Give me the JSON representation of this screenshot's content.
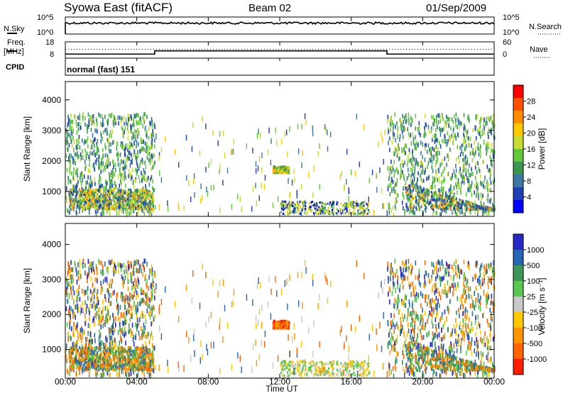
{
  "header": {
    "title": "Syowa East (fitACF)",
    "beam": "Beam 02",
    "date": "01/Sep/2009"
  },
  "chart_data": [
    {
      "type": "line",
      "panel": "noise",
      "left_label": "N.Sky",
      "right_label": "N.Search",
      "left_ticks": [
        "10^5",
        "10^0"
      ],
      "right_ticks": [
        "10^5",
        "10^0"
      ],
      "description_level_log10": 4.5
    },
    {
      "type": "line",
      "panel": "frequency",
      "left_label_line1": "Freq.",
      "left_label_line2": "[MHz]",
      "right_label": "Nave",
      "left_ticks": [
        18,
        8
      ],
      "right_ticks": [
        60,
        0
      ],
      "freq_ylim": [
        8,
        18
      ],
      "nave_ylim": [
        0,
        60
      ],
      "freq_series": [
        {
          "t_start": 0,
          "t_end": 5,
          "value_mhz": 10.5
        },
        {
          "t_start": 5,
          "t_end": 18,
          "value_mhz": 12.5
        },
        {
          "t_start": 18,
          "t_end": 24,
          "value_mhz": 10.5
        }
      ],
      "nave_level": 33
    },
    {
      "type": "text",
      "panel": "cpid",
      "label": "CPID",
      "value": "normal (fast) 151"
    },
    {
      "type": "heatmap",
      "panel": "power",
      "ylabel": "Slant Range [km]",
      "yticks": [
        1000,
        2000,
        3000,
        4000
      ],
      "ylim": [
        180,
        4600
      ],
      "colorbar": {
        "label": "Power [dB]",
        "ticks": [
          "4",
          "8",
          "12",
          "16",
          "20",
          "24",
          "28"
        ],
        "colors": [
          "#0000ff",
          "#1f3fb4",
          "#3c78a0",
          "#3c9650",
          "#64c83c",
          "#c8dc32",
          "#ffc800",
          "#ff8c00",
          "#ff5000",
          "#ff0000"
        ]
      },
      "echo_regions": [
        {
          "t": [
            0,
            5
          ],
          "r": [
            250,
            3600
          ],
          "note": "scatter"
        },
        {
          "t": [
            0.3,
            4.8
          ],
          "r": [
            500,
            1100
          ],
          "note": "dense"
        },
        {
          "t": [
            11.5,
            12.5
          ],
          "r": [
            1650,
            1850
          ]
        },
        {
          "t": [
            12,
            17
          ],
          "r": [
            250,
            700
          ]
        },
        {
          "t": [
            18,
            24
          ],
          "r": [
            250,
            3600
          ],
          "note": "scatter"
        }
      ]
    },
    {
      "type": "heatmap",
      "panel": "velocity",
      "ylabel": "Slant Range [km]",
      "yticks": [
        1000,
        2000,
        3000,
        4000
      ],
      "ylim": [
        180,
        4600
      ],
      "colorbar": {
        "label": "Velocity [m s⁻¹]",
        "ticks": [
          "1000",
          "500",
          "100",
          "25",
          "-25",
          "-100",
          "-500",
          "-1000"
        ],
        "colors": [
          "#2828c8",
          "#2864b4",
          "#3c965a",
          "#5ac850",
          "#c8c8c8",
          "#ffc800",
          "#ff9600",
          "#ff6400",
          "#ff1e00"
        ]
      }
    }
  ],
  "x_axis": {
    "label": "Time UT",
    "ticks": [
      "00:00",
      "04:00",
      "08:00",
      "12:00",
      "16:00",
      "20:00",
      "00:00"
    ],
    "range_hours": [
      0,
      24
    ]
  }
}
